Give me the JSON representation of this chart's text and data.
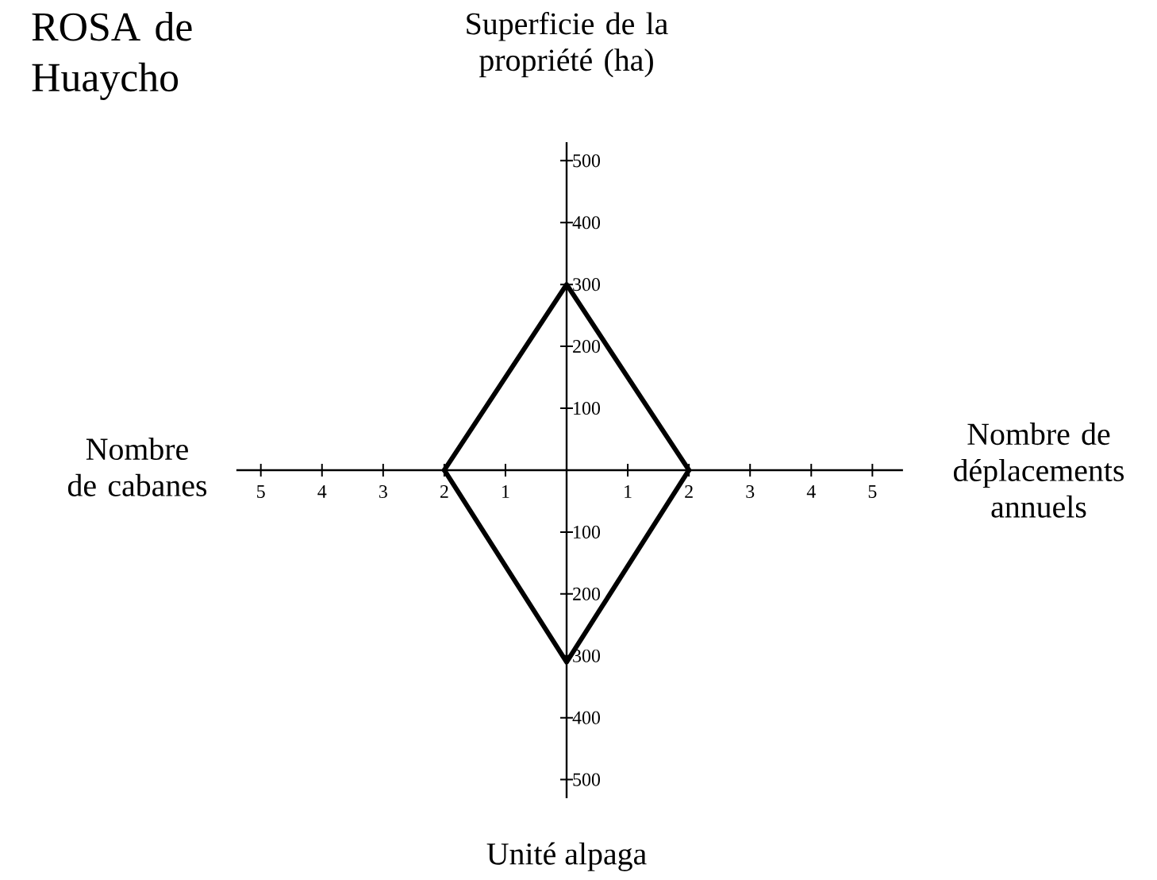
{
  "chart_data": {
    "type": "line",
    "title": "ROSA de Huaycho",
    "ylabel": "Superficie de la propriété (ha)",
    "xlabel": "Nombre de déplacements annuels",
    "annotations": [
      "Nombre de cabanes",
      "Unité alpaga"
    ],
    "x": [
      -2,
      0,
      2
    ],
    "series": [
      {
        "color": "#000000",
        "values": [
          0,
          300,
          0
        ]
      },
      {
        "color": "#000000",
        "values": [
          0,
          -310,
          0
        ]
      }
    ],
    "xlim": [
      -5.4,
      5.5
    ],
    "ylim": [
      -530,
      530
    ],
    "xticks": [
      {
        "value": -5,
        "label": "5"
      },
      {
        "value": -4,
        "label": "4"
      },
      {
        "value": -3,
        "label": "3"
      },
      {
        "value": -2,
        "label": "2"
      },
      {
        "value": -1,
        "label": "1"
      },
      1,
      2,
      3,
      4,
      5
    ],
    "yticks": [
      {
        "value": -500,
        "label": "500"
      },
      {
        "value": -400,
        "label": "400"
      },
      {
        "value": -300,
        "label": "300"
      },
      {
        "value": -200,
        "label": "200"
      },
      {
        "value": -100,
        "label": "100"
      },
      100,
      200,
      300,
      400,
      500
    ]
  }
}
